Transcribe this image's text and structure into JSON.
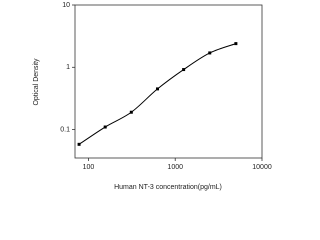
{
  "chart_data": {
    "type": "scatter",
    "x_label": "Human NT-3 concentration(pg/mL)",
    "y_label": "Optical Density",
    "log_x": true,
    "log_y": true,
    "x": [
      78,
      156,
      312,
      625,
      1250,
      2500,
      5000
    ],
    "values": [
      0.058,
      0.11,
      0.19,
      0.45,
      0.92,
      1.7,
      2.4
    ],
    "color": "#000000",
    "fit_line": true,
    "xlim": [
      70,
      10000
    ],
    "xticks": [
      100,
      1000,
      10000
    ],
    "ylim": [
      0.035,
      10
    ],
    "yticks": [
      0.1,
      1,
      10
    ]
  }
}
